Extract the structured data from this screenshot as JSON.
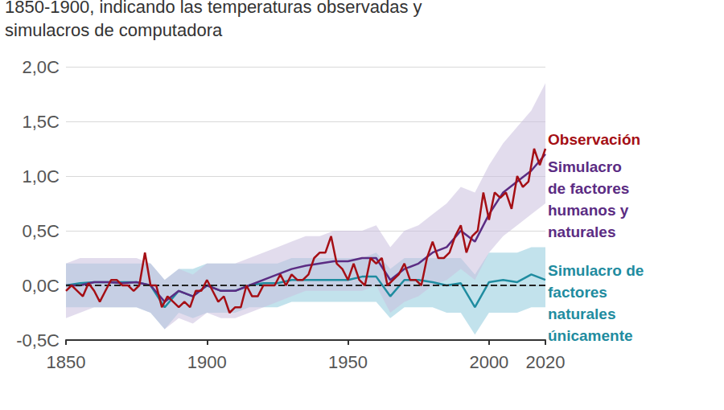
{
  "chart_data": {
    "type": "line",
    "title": "1850-1900, indicando las temperaturas observadas y\nsimulacros de computadora",
    "xlim": [
      1850,
      2020
    ],
    "xticks": [
      1850,
      1900,
      1950,
      2000,
      2020
    ],
    "ylim": [
      -0.5,
      2.0
    ],
    "yticks": [
      {
        "value": -0.5,
        "label": "-0,5C"
      },
      {
        "value": 0,
        "label": "0,0C"
      },
      {
        "value": 0.5,
        "label": "0,5C"
      },
      {
        "value": 1.0,
        "label": "1,0C"
      },
      {
        "value": 1.5,
        "label": "1,5C"
      },
      {
        "value": 2.0,
        "label": "2,0C"
      }
    ],
    "grid": true,
    "reference_line": 0,
    "series": [
      {
        "name": "Simulacro de\nfactores\nnaturales\núnicamente",
        "color": "#1f8ca0",
        "band_color": "#8fcbdc",
        "x": [
          1850,
          1855,
          1860,
          1865,
          1870,
          1875,
          1880,
          1885,
          1890,
          1895,
          1900,
          1905,
          1910,
          1915,
          1920,
          1925,
          1930,
          1935,
          1940,
          1945,
          1950,
          1955,
          1960,
          1965,
          1970,
          1975,
          1980,
          1985,
          1990,
          1995,
          2000,
          2005,
          2010,
          2015,
          2020
        ],
        "values": [
          0.0,
          0.02,
          0.03,
          0.03,
          0.03,
          0.03,
          0.0,
          -0.2,
          -0.05,
          -0.1,
          0.0,
          -0.05,
          -0.05,
          0.0,
          0.02,
          0.02,
          0.05,
          0.05,
          0.05,
          0.05,
          0.05,
          0.08,
          0.08,
          -0.1,
          0.05,
          0.05,
          0.03,
          0.0,
          0.02,
          -0.2,
          0.03,
          0.05,
          0.03,
          0.1,
          0.05
        ],
        "band_low": [
          -0.2,
          -0.2,
          -0.2,
          -0.2,
          -0.2,
          -0.2,
          -0.25,
          -0.4,
          -0.25,
          -0.3,
          -0.25,
          -0.25,
          -0.25,
          -0.2,
          -0.2,
          -0.2,
          -0.15,
          -0.15,
          -0.15,
          -0.15,
          -0.15,
          -0.15,
          -0.15,
          -0.3,
          -0.2,
          -0.2,
          -0.2,
          -0.25,
          -0.25,
          -0.45,
          -0.25,
          -0.25,
          -0.25,
          -0.2,
          -0.2
        ],
        "band_high": [
          0.2,
          0.2,
          0.2,
          0.2,
          0.2,
          0.2,
          0.2,
          0.05,
          0.15,
          0.15,
          0.2,
          0.2,
          0.2,
          0.2,
          0.2,
          0.2,
          0.25,
          0.25,
          0.25,
          0.25,
          0.25,
          0.25,
          0.3,
          0.15,
          0.25,
          0.25,
          0.25,
          0.25,
          0.25,
          0.1,
          0.3,
          0.3,
          0.3,
          0.35,
          0.35
        ]
      },
      {
        "name": "Simulacro\nde factores\nhumanos y\nnaturales",
        "color": "#5b2c83",
        "band_color": "#cbbfdf",
        "x": [
          1850,
          1855,
          1860,
          1865,
          1870,
          1875,
          1880,
          1885,
          1890,
          1895,
          1900,
          1905,
          1910,
          1915,
          1920,
          1925,
          1930,
          1935,
          1940,
          1945,
          1950,
          1955,
          1960,
          1965,
          1970,
          1975,
          1980,
          1985,
          1990,
          1995,
          2000,
          2005,
          2010,
          2015,
          2020
        ],
        "values": [
          0.0,
          0.0,
          0.03,
          0.03,
          0.02,
          0.03,
          0.0,
          -0.15,
          -0.05,
          -0.1,
          0.0,
          -0.05,
          -0.05,
          0.0,
          0.05,
          0.1,
          0.15,
          0.18,
          0.2,
          0.22,
          0.22,
          0.25,
          0.25,
          0.05,
          0.15,
          0.2,
          0.3,
          0.35,
          0.5,
          0.4,
          0.65,
          0.85,
          0.95,
          1.05,
          1.2
        ],
        "band_low": [
          -0.3,
          -0.25,
          -0.2,
          -0.2,
          -0.2,
          -0.2,
          -0.25,
          -0.4,
          -0.3,
          -0.35,
          -0.25,
          -0.3,
          -0.3,
          -0.25,
          -0.2,
          -0.15,
          -0.1,
          -0.05,
          -0.05,
          -0.05,
          -0.05,
          -0.05,
          0.0,
          -0.25,
          -0.15,
          -0.1,
          0.0,
          0.05,
          0.15,
          0.05,
          0.3,
          0.45,
          0.55,
          0.65,
          0.75
        ],
        "band_high": [
          0.2,
          0.25,
          0.25,
          0.25,
          0.25,
          0.25,
          0.2,
          0.05,
          0.15,
          0.1,
          0.2,
          0.2,
          0.2,
          0.25,
          0.3,
          0.35,
          0.4,
          0.45,
          0.45,
          0.5,
          0.5,
          0.5,
          0.55,
          0.35,
          0.5,
          0.55,
          0.65,
          0.75,
          0.9,
          0.85,
          1.1,
          1.3,
          1.45,
          1.6,
          1.85
        ]
      },
      {
        "name": "Observación",
        "color": "#a50f15",
        "x": [
          1850,
          1852,
          1854,
          1856,
          1858,
          1860,
          1862,
          1864,
          1866,
          1868,
          1870,
          1872,
          1874,
          1876,
          1878,
          1880,
          1882,
          1884,
          1886,
          1888,
          1890,
          1892,
          1894,
          1896,
          1898,
          1900,
          1902,
          1904,
          1906,
          1908,
          1910,
          1912,
          1914,
          1916,
          1918,
          1920,
          1922,
          1924,
          1926,
          1928,
          1930,
          1932,
          1934,
          1936,
          1938,
          1940,
          1942,
          1944,
          1946,
          1948,
          1950,
          1952,
          1954,
          1956,
          1958,
          1960,
          1962,
          1964,
          1966,
          1968,
          1970,
          1972,
          1974,
          1976,
          1978,
          1980,
          1982,
          1984,
          1986,
          1988,
          1990,
          1992,
          1994,
          1996,
          1998,
          2000,
          2002,
          2004,
          2006,
          2008,
          2010,
          2012,
          2014,
          2016,
          2018,
          2020
        ],
        "values": [
          -0.05,
          0.0,
          -0.05,
          -0.1,
          0.02,
          -0.05,
          -0.15,
          -0.05,
          0.05,
          0.05,
          0.0,
          0.0,
          -0.05,
          0.0,
          0.3,
          0.0,
          0.0,
          -0.2,
          -0.1,
          -0.15,
          -0.2,
          -0.15,
          -0.2,
          -0.05,
          -0.05,
          0.05,
          -0.05,
          -0.15,
          -0.1,
          -0.25,
          -0.2,
          -0.2,
          0.0,
          -0.1,
          -0.1,
          0.0,
          0.0,
          0.0,
          0.1,
          0.0,
          0.1,
          0.05,
          0.05,
          0.1,
          0.25,
          0.3,
          0.3,
          0.45,
          0.2,
          0.15,
          0.05,
          0.2,
          0.05,
          0.0,
          0.25,
          0.2,
          0.25,
          0.0,
          0.05,
          0.1,
          0.2,
          0.05,
          0.05,
          0.0,
          0.25,
          0.4,
          0.25,
          0.25,
          0.3,
          0.45,
          0.55,
          0.3,
          0.45,
          0.5,
          0.85,
          0.6,
          0.85,
          0.8,
          0.85,
          0.7,
          1.0,
          0.9,
          0.95,
          1.25,
          1.1,
          1.25
        ]
      }
    ]
  }
}
